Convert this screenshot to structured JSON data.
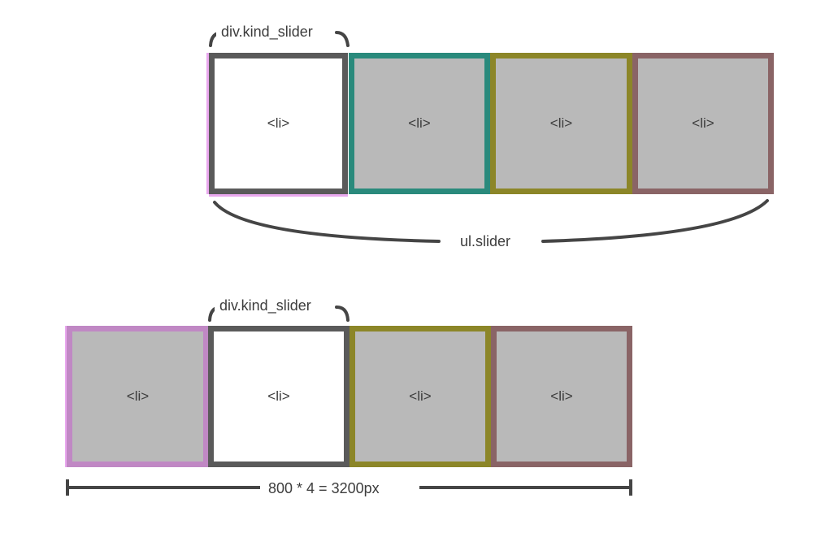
{
  "colors": {
    "active_border": "#5a5a5a",
    "teal": "#2a8a7c",
    "olive": "#8c8628",
    "mauve": "#8a6466",
    "pink": "#c088c4",
    "pink_edge": "#e9a8ee",
    "gray_fill": "#b9b9b9",
    "white_fill": "#ffffff",
    "line": "#454545"
  },
  "top": {
    "container_label": "div.kind_slider",
    "list_label": "ul.slider",
    "items": [
      {
        "text": "<li>",
        "active": true
      },
      {
        "text": "<li>",
        "active": false
      },
      {
        "text": "<li>",
        "active": false
      },
      {
        "text": "<li>",
        "active": false
      }
    ]
  },
  "bottom": {
    "container_label": "div.kind_slider",
    "width_label": "800 * 4 = 3200px",
    "items": [
      {
        "text": "<li>",
        "active": false
      },
      {
        "text": "<li>",
        "active": true
      },
      {
        "text": "<li>",
        "active": false
      },
      {
        "text": "<li>",
        "active": false
      }
    ]
  }
}
